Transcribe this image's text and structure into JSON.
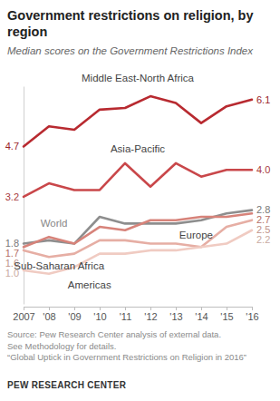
{
  "chart_data": {
    "type": "line",
    "title": "Government restrictions on religion, by region",
    "subtitle": "Median scores on the Government Restrictions Index",
    "categories": [
      "2007",
      "'08",
      "'09",
      "'10",
      "'11",
      "'12",
      "'13",
      "'14",
      "'15",
      "'16"
    ],
    "series": [
      {
        "name": "Middle East-North Africa",
        "color": "#b82a30",
        "values": [
          4.7,
          5.3,
          5.2,
          5.8,
          5.85,
          6.2,
          6.0,
          5.4,
          5.9,
          6.1
        ],
        "value_labels": [
          "4.7",
          null,
          null,
          null,
          null,
          null,
          null,
          null,
          null,
          "6.1"
        ]
      },
      {
        "name": "Asia-Pacific",
        "color": "#c9474a",
        "values": [
          3.2,
          3.6,
          3.4,
          3.4,
          4.2,
          3.5,
          4.2,
          3.8,
          4.0,
          4.0
        ],
        "value_labels": [
          "3.2",
          null,
          null,
          null,
          null,
          null,
          null,
          null,
          null,
          "4.0"
        ]
      },
      {
        "name": "World",
        "color": "#8e8e8e",
        "values": [
          1.8,
          1.9,
          1.8,
          2.6,
          2.4,
          2.4,
          2.4,
          2.5,
          2.7,
          2.8
        ],
        "value_labels": [
          "1.8",
          null,
          null,
          null,
          null,
          null,
          null,
          null,
          null,
          "2.8"
        ]
      },
      {
        "name": "Europe",
        "color": "#d7837a",
        "values": [
          1.7,
          2.0,
          1.8,
          2.3,
          2.2,
          2.5,
          2.5,
          2.6,
          2.6,
          2.7
        ],
        "value_labels": [
          "1.7",
          null,
          null,
          null,
          null,
          null,
          null,
          null,
          null,
          "2.7"
        ]
      },
      {
        "name": "Sub-Saharan Africa",
        "color": "#e6aea4",
        "values": [
          1.6,
          1.4,
          1.5,
          1.9,
          1.9,
          1.8,
          1.8,
          1.7,
          2.3,
          2.5
        ],
        "value_labels": [
          "1.6",
          null,
          null,
          null,
          null,
          null,
          null,
          null,
          null,
          "2.5"
        ]
      },
      {
        "name": "Americas",
        "color": "#f0cbc2",
        "values": [
          1.0,
          0.9,
          1.1,
          1.5,
          1.5,
          1.6,
          1.6,
          1.7,
          1.8,
          2.2
        ],
        "value_labels": [
          "1.0",
          null,
          null,
          null,
          null,
          null,
          null,
          null,
          null,
          "2.2"
        ]
      }
    ],
    "ylim": [
      0,
      6.5
    ],
    "tick_labels": "x",
    "notes": [
      "Source: Pew Research Center analysis of external data.",
      "See Methodology for details.",
      "“Global Uptick in Government Restrictions on Religion in 2016”"
    ],
    "footer": "PEW RESEARCH CENTER"
  }
}
